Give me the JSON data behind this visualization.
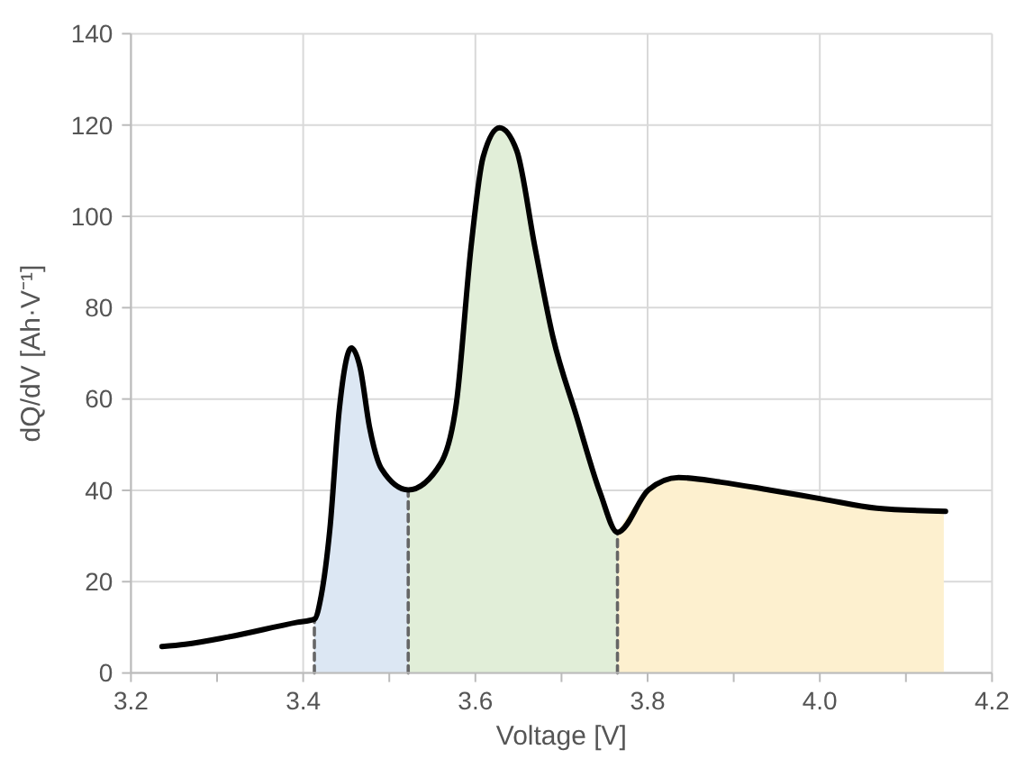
{
  "chart_data": {
    "type": "line",
    "xlabel": "Voltage [V]",
    "ylabel": "dQ/dV [Ah·V⁻¹]",
    "xlim": [
      3.2,
      4.2
    ],
    "ylim": [
      0,
      140
    ],
    "xticks": [
      3.2,
      {
        "value": 3.3,
        "label": null
      },
      3.4,
      {
        "value": 3.5,
        "label": null
      },
      3.6,
      {
        "value": 3.7,
        "label": null
      },
      3.8,
      {
        "value": 3.9,
        "label": null
      },
      {
        "value": 4.0,
        "label": "4.0"
      },
      {
        "value": 4.1,
        "label": null
      },
      4.2
    ],
    "yticks": [
      0,
      20,
      40,
      60,
      80,
      100,
      120,
      140
    ],
    "grid": true,
    "series": [
      {
        "type": "area",
        "color": "#dce7f3",
        "x": [
          3.413,
          3.421,
          3.431,
          3.442,
          3.456,
          3.466,
          3.477,
          3.491,
          3.522
        ],
        "values": [
          11.8,
          17,
          31.5,
          57.8,
          71.2,
          67,
          53.9,
          44.7,
          40.1
        ]
      },
      {
        "type": "area",
        "color": "#e1eed8",
        "x": [
          3.522,
          3.56,
          3.578,
          3.595,
          3.609,
          3.628,
          3.648,
          3.669,
          3.69,
          3.717,
          3.745,
          3.765
        ],
        "values": [
          40.1,
          46,
          59.2,
          93.4,
          113,
          119.4,
          114.4,
          93.4,
          73.6,
          56.5,
          39.4,
          30.8
        ]
      },
      {
        "type": "area",
        "color": "#fdf0cf",
        "x": [
          3.765,
          3.801,
          3.836,
          3.885,
          3.941,
          4.003,
          4.066,
          4.144
        ],
        "values": [
          30.8,
          40.1,
          42.8,
          41.8,
          40.1,
          38.1,
          36.1,
          35.4
        ]
      },
      {
        "color": "#666666",
        "line_style": "dashed",
        "x": [
          3.413,
          3.413
        ],
        "values": [
          0,
          11.8
        ]
      },
      {
        "color": "#666666",
        "line_style": "dashed",
        "x": [
          3.522,
          3.522
        ],
        "values": [
          0,
          40.1
        ]
      },
      {
        "color": "#666666",
        "line_style": "dashed",
        "x": [
          3.765,
          3.765
        ],
        "values": [
          0,
          30.8
        ]
      },
      {
        "color": "#000000",
        "line_style": "solid",
        "x": [
          3.236,
          3.263,
          3.313,
          3.393,
          3.413,
          3.421,
          3.431,
          3.442,
          3.456,
          3.466,
          3.477,
          3.491,
          3.522,
          3.56,
          3.578,
          3.595,
          3.609,
          3.628,
          3.648,
          3.669,
          3.69,
          3.717,
          3.745,
          3.765,
          3.801,
          3.836,
          3.885,
          3.941,
          4.003,
          4.066,
          4.146
        ],
        "values": [
          5.8,
          6.3,
          7.9,
          11.1,
          11.8,
          17,
          31.5,
          57.8,
          71.2,
          67,
          53.9,
          44.7,
          40.1,
          46,
          59.2,
          93.4,
          113,
          119.4,
          114.4,
          93.4,
          73.6,
          56.5,
          39.4,
          30.8,
          40.1,
          42.8,
          41.8,
          40.1,
          38.1,
          36.1,
          35.4
        ]
      }
    ]
  }
}
